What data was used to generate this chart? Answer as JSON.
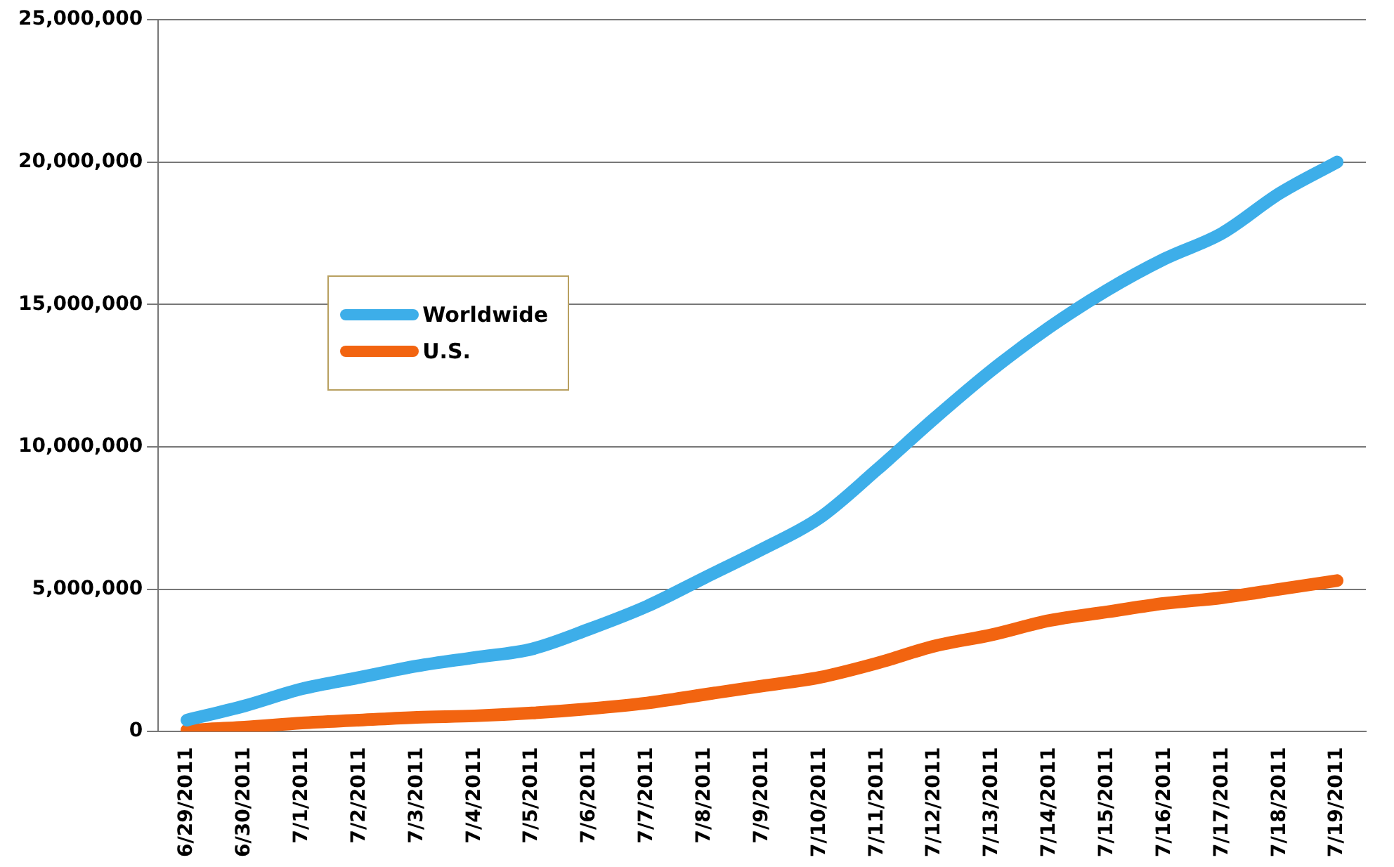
{
  "chart_data": {
    "type": "line",
    "categories": [
      "6/29/2011",
      "6/30/2011",
      "7/1/2011",
      "7/2/2011",
      "7/3/2011",
      "7/4/2011",
      "7/5/2011",
      "7/6/2011",
      "7/7/2011",
      "7/8/2011",
      "7/9/2011",
      "7/10/2011",
      "7/11/2011",
      "7/12/2011",
      "7/13/2011",
      "7/14/2011",
      "7/15/2011",
      "7/16/2011",
      "7/17/2011",
      "7/18/2011",
      "7/19/2011"
    ],
    "series": [
      {
        "name": "Worldwide",
        "color": "#3daee9",
        "values": [
          400000,
          900000,
          1500000,
          1900000,
          2300000,
          2600000,
          2900000,
          3600000,
          4400000,
          5400000,
          6400000,
          7500000,
          9200000,
          11000000,
          12700000,
          14200000,
          15500000,
          16600000,
          17500000,
          18900000,
          20000000
        ]
      },
      {
        "name": "U.S.",
        "color": "#f26410",
        "values": [
          50000,
          150000,
          300000,
          400000,
          500000,
          550000,
          650000,
          800000,
          1000000,
          1300000,
          1600000,
          1900000,
          2400000,
          3000000,
          3400000,
          3900000,
          4200000,
          4500000,
          4700000,
          5000000,
          5300000
        ]
      }
    ],
    "ylim": [
      0,
      25000000
    ],
    "yticks": [
      0,
      {
        "value": 5000000,
        "label": "5,000,000"
      },
      {
        "value": 10000000,
        "label": "10,000,000"
      },
      {
        "value": 15000000,
        "label": "15,000,000"
      },
      {
        "value": 20000000,
        "label": "20,000,000"
      },
      {
        "value": 25000000,
        "label": "25,000,000"
      }
    ],
    "grid": "y",
    "legend": "left",
    "marker": "none",
    "line_style": "solid"
  }
}
